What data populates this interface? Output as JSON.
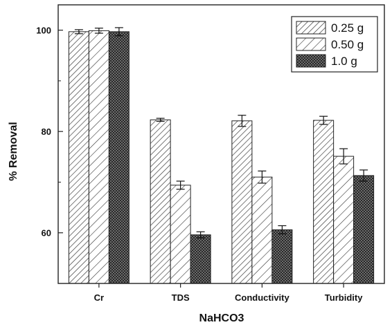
{
  "chart_data": {
    "type": "bar",
    "title": "",
    "xlabel": "NaHCO3",
    "ylabel": "% Removal",
    "ylim": [
      50,
      105
    ],
    "yticks": [
      60,
      80,
      100
    ],
    "grid": false,
    "legend_position": "top-right",
    "categories": [
      "Cr",
      "TDS",
      "Conductivity",
      "Turbidity"
    ],
    "series": [
      {
        "name": "0.25 g",
        "pattern": "sparse-diagonal",
        "values": [
          99.7,
          82.3,
          82.1,
          82.2
        ],
        "errors": [
          0.4,
          0.3,
          1.1,
          0.8
        ]
      },
      {
        "name": "0.50 g",
        "pattern": "wide-diagonal",
        "values": [
          99.9,
          69.4,
          71.0,
          75.1
        ],
        "errors": [
          0.5,
          0.8,
          1.2,
          1.5
        ]
      },
      {
        "name": "1.0 g",
        "pattern": "crosshatch",
        "values": [
          99.7,
          59.6,
          60.6,
          71.3
        ],
        "errors": [
          0.8,
          0.6,
          0.8,
          1.1
        ]
      }
    ]
  }
}
